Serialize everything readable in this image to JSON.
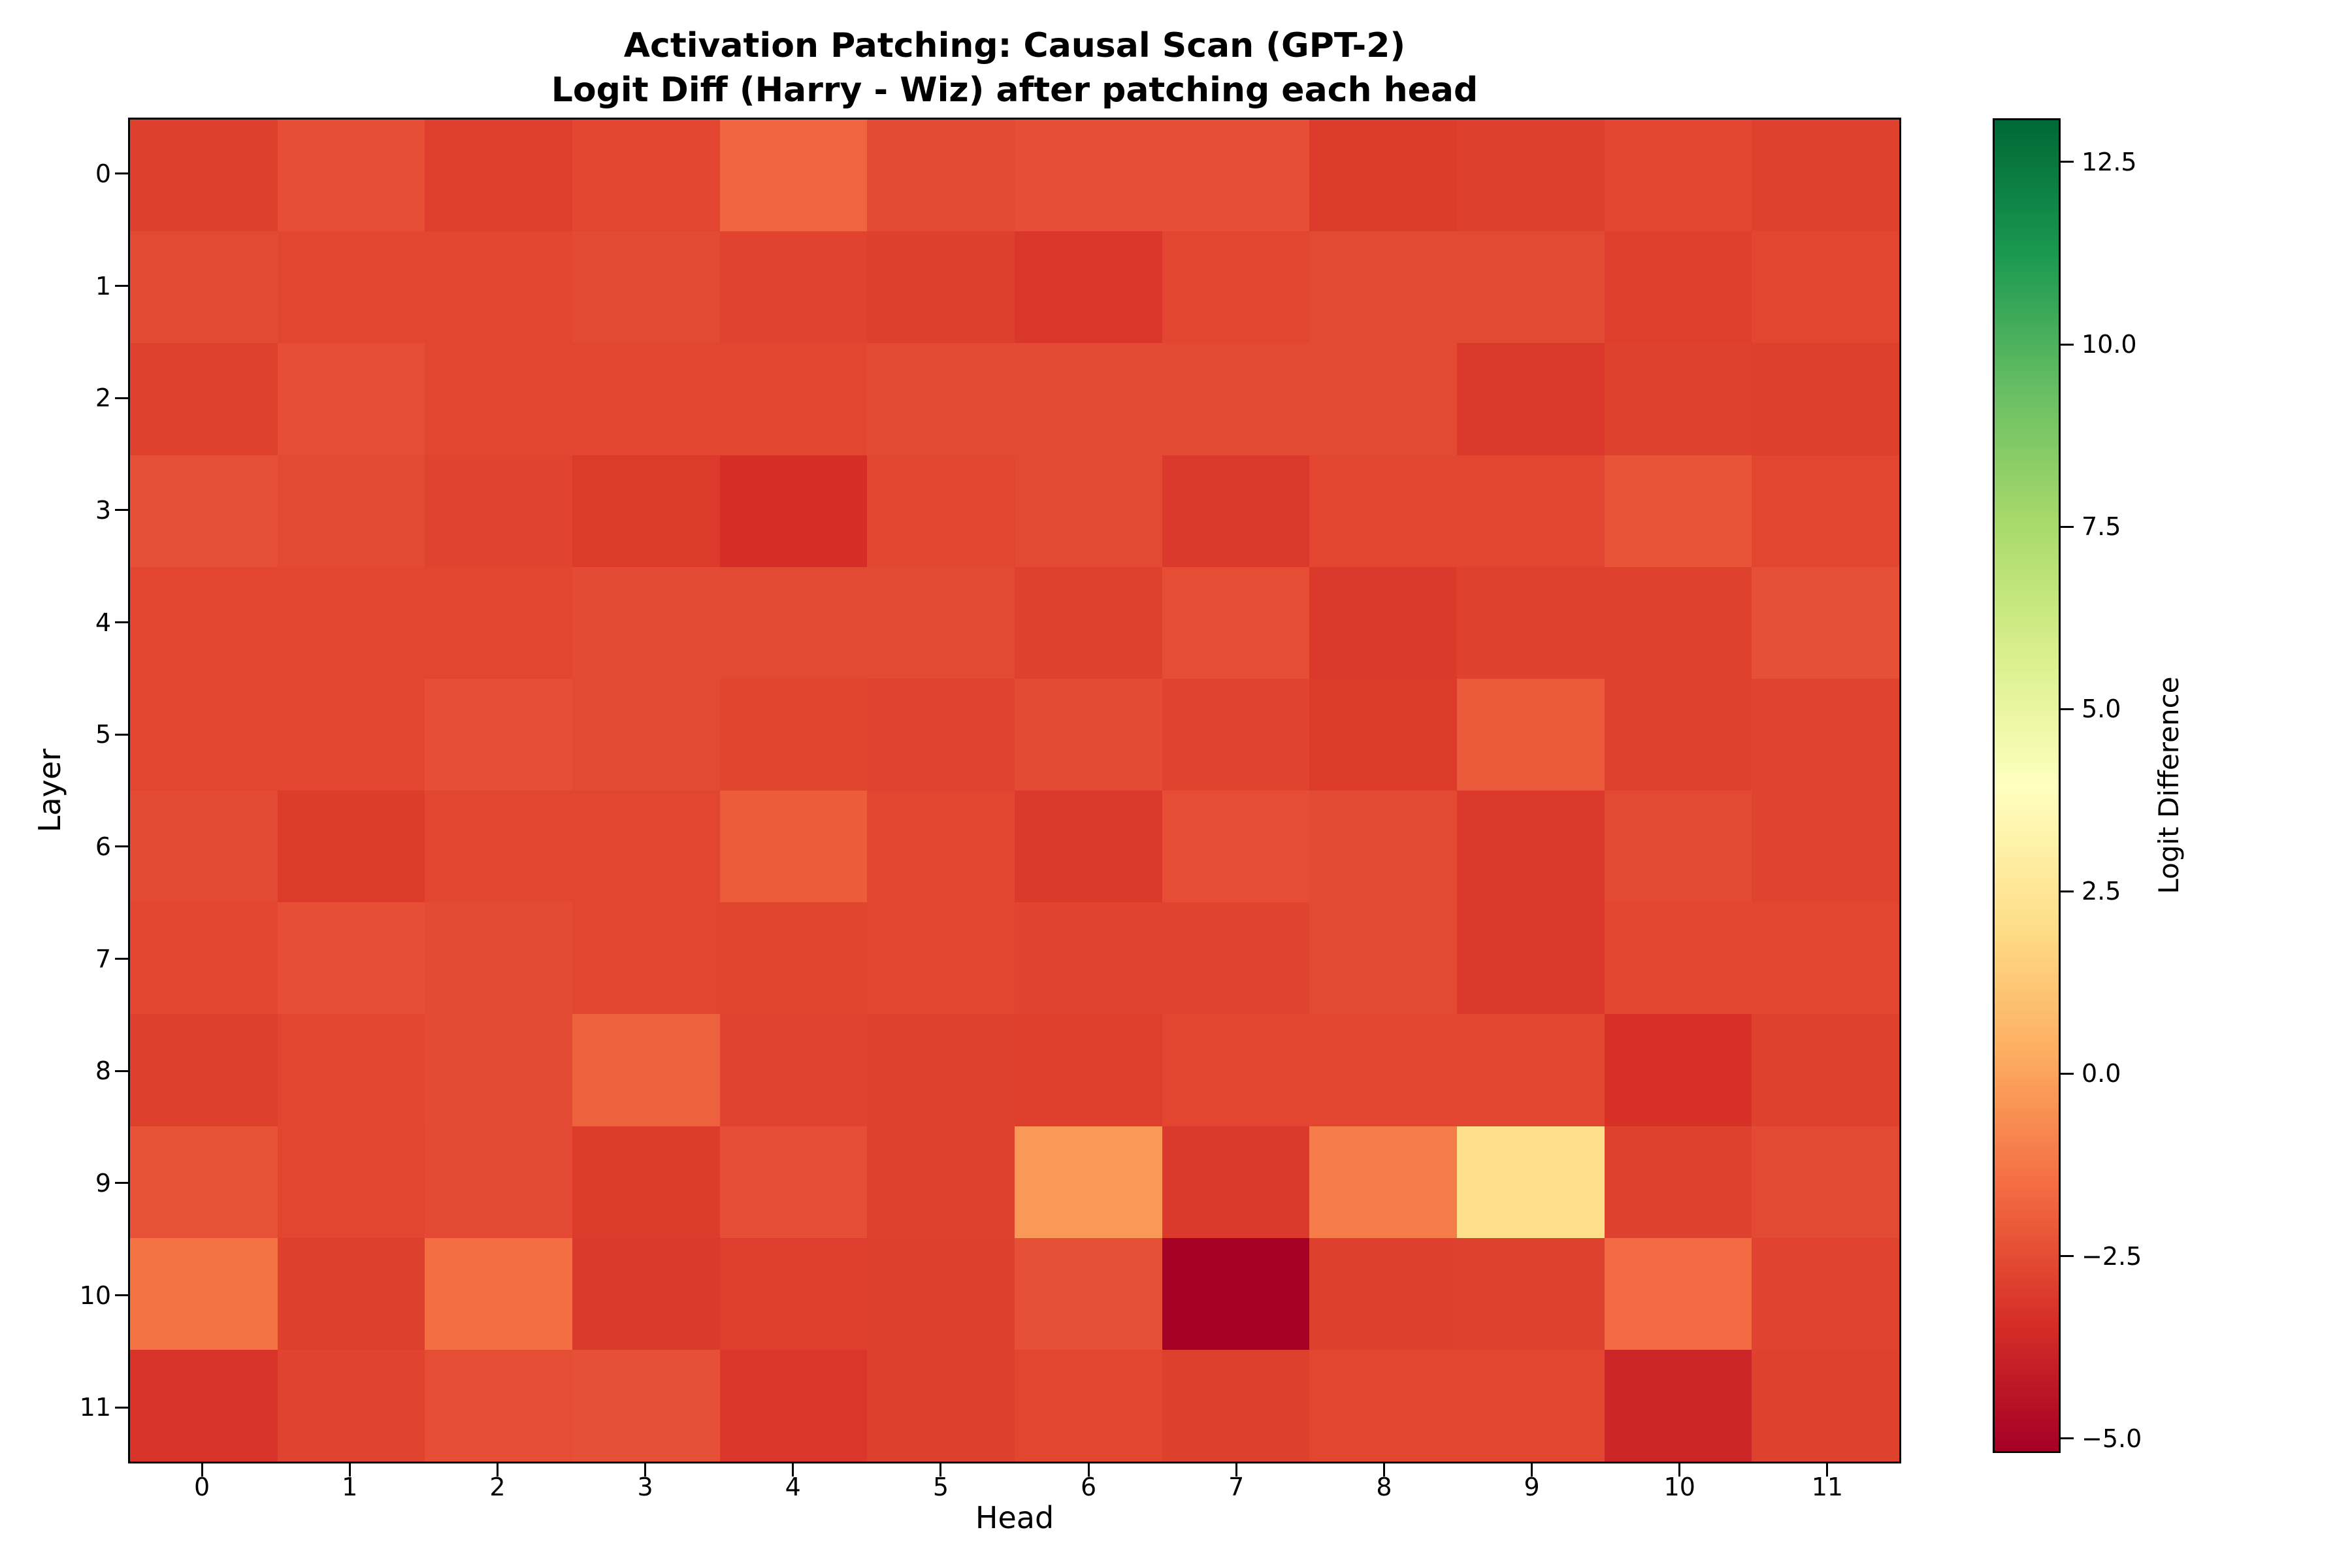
{
  "title": {
    "line1": "Activation Patching: Causal Scan (GPT-2)",
    "line2": "Logit Diff (Harry - Wiz) after patching each head"
  },
  "axes": {
    "x_label": "Head",
    "y_label": "Layer",
    "x_ticks": [
      "0",
      "1",
      "2",
      "3",
      "4",
      "5",
      "6",
      "7",
      "8",
      "9",
      "10",
      "11"
    ],
    "y_ticks": [
      "0",
      "1",
      "2",
      "3",
      "4",
      "5",
      "6",
      "7",
      "8",
      "9",
      "10",
      "11"
    ]
  },
  "colorbar": {
    "label": "Logit Difference",
    "vmin": -5.2,
    "vmax": 13.1,
    "ticks": [
      {
        "value": 12.5,
        "label": "12.5"
      },
      {
        "value": 10.0,
        "label": "10.0"
      },
      {
        "value": 7.5,
        "label": "7.5"
      },
      {
        "value": 5.0,
        "label": "5.0"
      },
      {
        "value": 2.5,
        "label": "2.5"
      },
      {
        "value": 0.0,
        "label": "0.0"
      },
      {
        "value": -2.5,
        "label": "−2.5"
      },
      {
        "value": -5.0,
        "label": "−5.0"
      }
    ]
  },
  "chart_data": {
    "type": "heatmap",
    "title": "Activation Patching: Causal Scan (GPT-2) — Logit Diff (Harry - Wiz) after patching each head",
    "xlabel": "Head",
    "ylabel": "Layer",
    "x": [
      0,
      1,
      2,
      3,
      4,
      5,
      6,
      7,
      8,
      9,
      10,
      11
    ],
    "y": [
      0,
      1,
      2,
      3,
      4,
      5,
      6,
      7,
      8,
      9,
      10,
      11
    ],
    "vmin": -5.2,
    "vmax": 13.1,
    "colormap": {
      "name": "RdYlGn",
      "stops": [
        [
          0.0,
          "#a50026"
        ],
        [
          0.1,
          "#d73027"
        ],
        [
          0.2,
          "#f46d43"
        ],
        [
          0.3,
          "#fdae61"
        ],
        [
          0.4,
          "#fee08b"
        ],
        [
          0.5,
          "#ffffbf"
        ],
        [
          0.6,
          "#d9ef8b"
        ],
        [
          0.7,
          "#a6d96a"
        ],
        [
          0.8,
          "#66bd63"
        ],
        [
          0.9,
          "#1a9850"
        ],
        [
          1.0,
          "#006837"
        ]
      ]
    },
    "values": [
      [
        -2.9,
        -2.5,
        -2.95,
        -2.7,
        -1.8,
        -2.6,
        -2.45,
        -2.45,
        -3.0,
        -2.9,
        -2.7,
        -2.85
      ],
      [
        -2.6,
        -2.7,
        -2.7,
        -2.6,
        -2.8,
        -2.9,
        -3.2,
        -2.7,
        -2.6,
        -2.6,
        -2.95,
        -2.7
      ],
      [
        -2.85,
        -2.5,
        -2.7,
        -2.7,
        -2.7,
        -2.6,
        -2.6,
        -2.6,
        -2.6,
        -3.1,
        -2.85,
        -2.9
      ],
      [
        -2.4,
        -2.6,
        -2.8,
        -3.05,
        -3.45,
        -2.7,
        -2.6,
        -3.1,
        -2.7,
        -2.7,
        -2.3,
        -2.7
      ],
      [
        -2.7,
        -2.7,
        -2.7,
        -2.55,
        -2.6,
        -2.6,
        -2.85,
        -2.5,
        -3.1,
        -2.85,
        -2.85,
        -2.4
      ],
      [
        -2.7,
        -2.7,
        -2.45,
        -2.6,
        -2.75,
        -2.8,
        -2.55,
        -2.8,
        -3.0,
        -2.1,
        -2.85,
        -2.8
      ],
      [
        -2.6,
        -3.0,
        -2.7,
        -2.7,
        -2.05,
        -2.7,
        -3.1,
        -2.5,
        -2.6,
        -3.1,
        -2.6,
        -2.8
      ],
      [
        -2.7,
        -2.45,
        -2.55,
        -2.7,
        -2.75,
        -2.7,
        -2.8,
        -2.8,
        -2.6,
        -3.1,
        -2.7,
        -2.7
      ],
      [
        -2.9,
        -2.7,
        -2.55,
        -1.9,
        -2.8,
        -2.85,
        -2.95,
        -2.7,
        -2.7,
        -2.7,
        -3.35,
        -2.85
      ],
      [
        -2.35,
        -2.7,
        -2.6,
        -3.0,
        -2.45,
        -2.85,
        -0.3,
        -3.1,
        -1.1,
        2.1,
        -2.85,
        -2.6
      ],
      [
        -1.4,
        -2.9,
        -1.5,
        -3.1,
        -2.95,
        -2.9,
        -2.4,
        -5.2,
        -2.9,
        -2.85,
        -1.6,
        -2.8
      ],
      [
        -3.25,
        -2.8,
        -2.5,
        -2.4,
        -3.15,
        -2.9,
        -2.7,
        -2.9,
        -2.7,
        -2.7,
        -3.8,
        -2.85
      ]
    ]
  }
}
